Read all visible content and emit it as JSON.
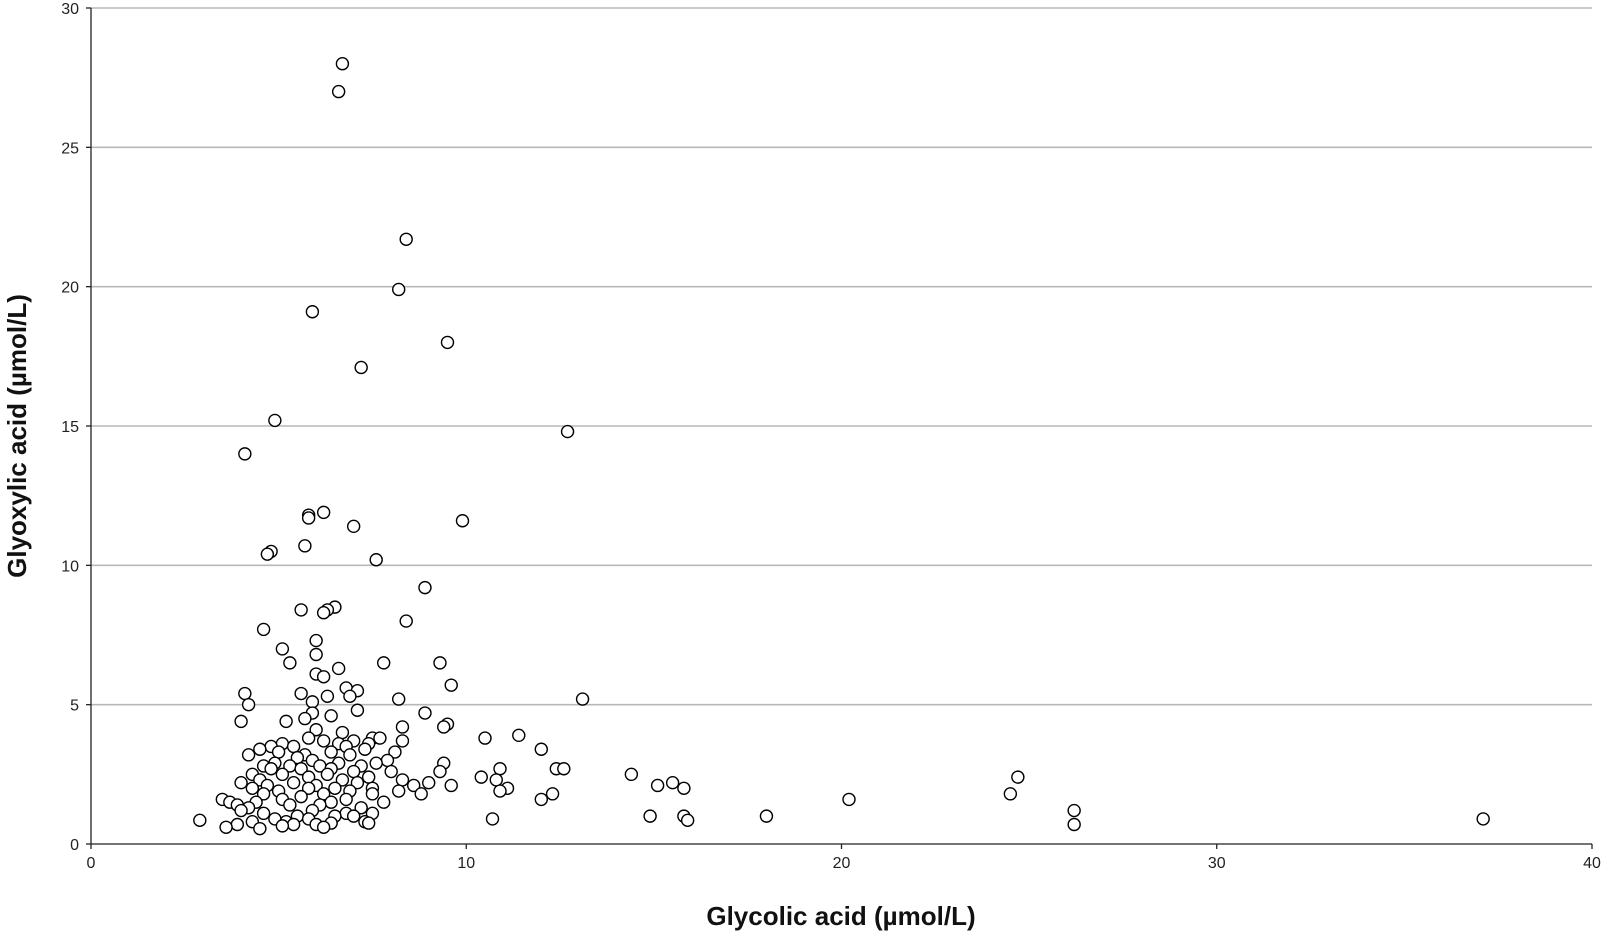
{
  "chart_data": {
    "type": "scatter",
    "xlabel": "Glycolic acid (µmol/L)",
    "ylabel": "Glyoxylic acid (µmol/L)",
    "xlim": [
      0,
      40
    ],
    "ylim": [
      0,
      30
    ],
    "x_ticks": [
      "0",
      "10",
      "20",
      "30",
      "40"
    ],
    "y_ticks": [
      "0",
      "5",
      "10",
      "15",
      "20",
      "25",
      "30"
    ],
    "grid": "horizontal",
    "marker": "open-circle",
    "colors": {
      "marker_edge": "#000000",
      "marker_fill": "#ffffff",
      "grid": "#b8b8b8"
    },
    "points": [
      [
        6.7,
        28.0
      ],
      [
        6.6,
        27.0
      ],
      [
        8.4,
        21.7
      ],
      [
        8.2,
        19.9
      ],
      [
        5.9,
        19.1
      ],
      [
        9.5,
        18.0
      ],
      [
        7.2,
        17.1
      ],
      [
        4.9,
        15.2
      ],
      [
        12.7,
        14.8
      ],
      [
        4.1,
        14.0
      ],
      [
        6.2,
        11.9
      ],
      [
        5.8,
        11.8
      ],
      [
        5.8,
        11.7
      ],
      [
        7.0,
        11.4
      ],
      [
        9.9,
        11.6
      ],
      [
        4.8,
        10.5
      ],
      [
        4.7,
        10.4
      ],
      [
        5.7,
        10.7
      ],
      [
        7.6,
        10.2
      ],
      [
        8.9,
        9.2
      ],
      [
        6.5,
        8.5
      ],
      [
        6.3,
        8.4
      ],
      [
        5.6,
        8.4
      ],
      [
        6.2,
        8.3
      ],
      [
        8.4,
        8.0
      ],
      [
        4.6,
        7.7
      ],
      [
        6.0,
        7.3
      ],
      [
        5.1,
        7.0
      ],
      [
        6.0,
        6.8
      ],
      [
        5.3,
        6.5
      ],
      [
        9.3,
        6.5
      ],
      [
        7.8,
        6.5
      ],
      [
        6.6,
        6.3
      ],
      [
        6.0,
        6.1
      ],
      [
        6.2,
        6.0
      ],
      [
        9.6,
        5.7
      ],
      [
        6.8,
        5.6
      ],
      [
        7.1,
        5.5
      ],
      [
        4.1,
        5.4
      ],
      [
        5.6,
        5.4
      ],
      [
        6.3,
        5.3
      ],
      [
        6.9,
        5.3
      ],
      [
        8.2,
        5.2
      ],
      [
        13.1,
        5.2
      ],
      [
        5.9,
        5.1
      ],
      [
        4.2,
        5.0
      ],
      [
        7.1,
        4.8
      ],
      [
        5.9,
        4.7
      ],
      [
        8.9,
        4.7
      ],
      [
        6.4,
        4.6
      ],
      [
        5.7,
        4.5
      ],
      [
        4.0,
        4.4
      ],
      [
        5.2,
        4.4
      ],
      [
        9.5,
        4.3
      ],
      [
        9.4,
        4.2
      ],
      [
        8.3,
        4.2
      ],
      [
        6.0,
        4.1
      ],
      [
        6.7,
        4.0
      ],
      [
        11.4,
        3.9
      ],
      [
        5.8,
        3.8
      ],
      [
        7.5,
        3.8
      ],
      [
        7.7,
        3.8
      ],
      [
        10.5,
        3.8
      ],
      [
        6.2,
        3.7
      ],
      [
        7.0,
        3.7
      ],
      [
        8.3,
        3.7
      ],
      [
        5.1,
        3.6
      ],
      [
        6.6,
        3.6
      ],
      [
        7.4,
        3.6
      ],
      [
        4.8,
        3.5
      ],
      [
        6.8,
        3.5
      ],
      [
        5.4,
        3.5
      ],
      [
        4.5,
        3.4
      ],
      [
        7.3,
        3.4
      ],
      [
        12.0,
        3.4
      ],
      [
        5.0,
        3.3
      ],
      [
        6.4,
        3.3
      ],
      [
        8.1,
        3.3
      ],
      [
        5.7,
        3.2
      ],
      [
        4.2,
        3.2
      ],
      [
        6.9,
        3.2
      ],
      [
        5.5,
        3.1
      ],
      [
        7.9,
        3.0
      ],
      [
        5.9,
        3.0
      ],
      [
        4.9,
        2.9
      ],
      [
        6.6,
        2.9
      ],
      [
        7.6,
        2.9
      ],
      [
        9.4,
        2.9
      ],
      [
        5.3,
        2.8
      ],
      [
        6.1,
        2.8
      ],
      [
        7.2,
        2.8
      ],
      [
        4.6,
        2.8
      ],
      [
        10.9,
        2.7
      ],
      [
        12.4,
        2.7
      ],
      [
        12.6,
        2.7
      ],
      [
        4.8,
        2.7
      ],
      [
        5.6,
        2.7
      ],
      [
        6.4,
        2.7
      ],
      [
        7.0,
        2.6
      ],
      [
        9.3,
        2.6
      ],
      [
        8.0,
        2.6
      ],
      [
        4.3,
        2.5
      ],
      [
        5.1,
        2.5
      ],
      [
        6.3,
        2.5
      ],
      [
        14.4,
        2.5
      ],
      [
        5.8,
        2.4
      ],
      [
        7.4,
        2.4
      ],
      [
        10.4,
        2.4
      ],
      [
        24.7,
        2.4
      ],
      [
        4.5,
        2.3
      ],
      [
        6.7,
        2.3
      ],
      [
        8.3,
        2.3
      ],
      [
        10.8,
        2.3
      ],
      [
        5.4,
        2.2
      ],
      [
        7.1,
        2.2
      ],
      [
        4.0,
        2.2
      ],
      [
        9.0,
        2.2
      ],
      [
        15.5,
        2.2
      ],
      [
        6.0,
        2.1
      ],
      [
        8.6,
        2.1
      ],
      [
        9.6,
        2.1
      ],
      [
        15.1,
        2.1
      ],
      [
        4.7,
        2.1
      ],
      [
        5.8,
        2.0
      ],
      [
        7.5,
        2.0
      ],
      [
        11.1,
        2.0
      ],
      [
        15.8,
        2.0
      ],
      [
        4.3,
        2.0
      ],
      [
        6.5,
        2.0
      ],
      [
        6.9,
        1.9
      ],
      [
        8.2,
        1.9
      ],
      [
        10.9,
        1.9
      ],
      [
        5.0,
        1.9
      ],
      [
        8.8,
        1.8
      ],
      [
        4.6,
        1.8
      ],
      [
        12.3,
        1.8
      ],
      [
        24.5,
        1.8
      ],
      [
        6.2,
        1.8
      ],
      [
        7.5,
        1.8
      ],
      [
        5.6,
        1.7
      ],
      [
        3.5,
        1.6
      ],
      [
        6.8,
        1.6
      ],
      [
        12.0,
        1.6
      ],
      [
        20.2,
        1.6
      ],
      [
        5.1,
        1.6
      ],
      [
        3.7,
        1.5
      ],
      [
        4.4,
        1.5
      ],
      [
        6.4,
        1.5
      ],
      [
        7.8,
        1.5
      ],
      [
        3.9,
        1.4
      ],
      [
        5.3,
        1.4
      ],
      [
        6.1,
        1.4
      ],
      [
        7.2,
        1.3
      ],
      [
        4.2,
        1.3
      ],
      [
        5.9,
        1.2
      ],
      [
        26.2,
        1.2
      ],
      [
        4.0,
        1.2
      ],
      [
        6.8,
        1.1
      ],
      [
        7.5,
        1.1
      ],
      [
        4.6,
        1.1
      ],
      [
        5.5,
        1.0
      ],
      [
        6.5,
        1.0
      ],
      [
        14.9,
        1.0
      ],
      [
        15.8,
        1.0
      ],
      [
        18.0,
        1.0
      ],
      [
        7.0,
        1.0
      ],
      [
        4.9,
        0.9
      ],
      [
        5.8,
        0.9
      ],
      [
        10.7,
        0.9
      ],
      [
        15.9,
        0.85
      ],
      [
        37.1,
        0.9
      ],
      [
        2.9,
        0.85
      ],
      [
        5.2,
        0.8
      ],
      [
        7.3,
        0.8
      ],
      [
        4.3,
        0.8
      ],
      [
        6.4,
        0.75
      ],
      [
        7.4,
        0.75
      ],
      [
        3.9,
        0.7
      ],
      [
        5.4,
        0.7
      ],
      [
        6.0,
        0.7
      ],
      [
        26.2,
        0.7
      ],
      [
        5.1,
        0.65
      ],
      [
        3.6,
        0.6
      ],
      [
        4.5,
        0.55
      ],
      [
        6.2,
        0.6
      ]
    ]
  }
}
